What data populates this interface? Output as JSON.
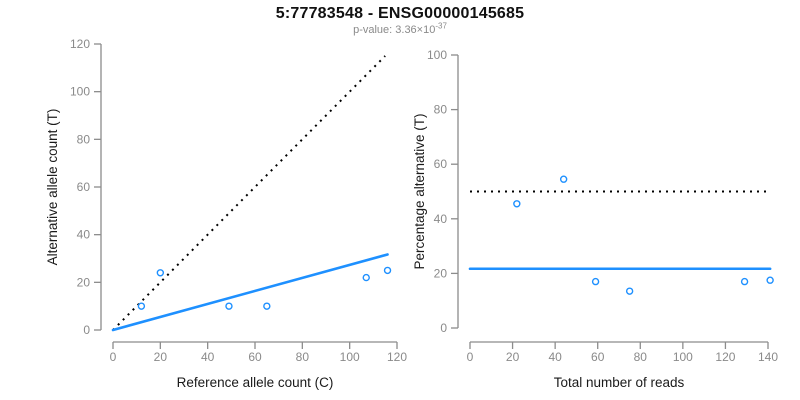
{
  "header": {
    "title": "5:77783548 - ENSG00000145685",
    "subtitle_prefix": "p-value: 3.36×10",
    "subtitle_exponent": "-37"
  },
  "colors": {
    "accent_blue": "#1E90FF",
    "axis_line_gray": "#8c8c8c",
    "tick_label_gray": "#8a8a8a",
    "dotted_line_black": "#000000",
    "axis_title_black": "#1a1a1a",
    "subtitle_gray": "#8a8a8a"
  },
  "chart_data": [
    {
      "type": "scatter",
      "name": "allele-count-scatter",
      "xlabel": "Reference allele count (C)",
      "ylabel": "Alternative allele count (T)",
      "xlim": [
        0,
        120
      ],
      "ylim": [
        0,
        120
      ],
      "xticks": [
        0,
        20,
        40,
        60,
        80,
        100,
        120
      ],
      "yticks": [
        0,
        20,
        40,
        60,
        80,
        100,
        120
      ],
      "grid": false,
      "points": [
        [
          12,
          10
        ],
        [
          20,
          24
        ],
        [
          49,
          10
        ],
        [
          65,
          10
        ],
        [
          107,
          22
        ],
        [
          116,
          25
        ]
      ],
      "lines": [
        {
          "name": "identity-line",
          "style": "dotted",
          "color": "#000000",
          "points": [
            [
              0,
              0
            ],
            [
              115,
              115
            ]
          ]
        },
        {
          "name": "fit-line",
          "style": "solid",
          "color": "#1E90FF",
          "points": [
            [
              0,
              0
            ],
            [
              116,
              31.7
            ]
          ]
        }
      ]
    },
    {
      "type": "scatter",
      "name": "percentage-alternative-scatter",
      "xlabel": "Total number of reads",
      "ylabel": "Percentage alternative (T)",
      "xlim": [
        0,
        140
      ],
      "ylim": [
        0,
        100
      ],
      "xticks": [
        0,
        20,
        40,
        60,
        80,
        100,
        120,
        140
      ],
      "yticks": [
        0,
        20,
        40,
        60,
        80,
        100
      ],
      "grid": false,
      "points": [
        [
          22,
          45.5
        ],
        [
          44,
          54.5
        ],
        [
          59,
          17
        ],
        [
          75,
          13.5
        ],
        [
          129,
          17
        ],
        [
          141,
          17.5
        ]
      ],
      "lines": [
        {
          "name": "expected-50-percent-line",
          "style": "dotted",
          "color": "#000000",
          "points": [
            [
              0,
              50
            ],
            [
              141,
              50
            ]
          ]
        },
        {
          "name": "mean-percentage-line",
          "style": "solid",
          "color": "#1E90FF",
          "points": [
            [
              0,
              21.7
            ],
            [
              141,
              21.7
            ]
          ]
        }
      ]
    }
  ]
}
